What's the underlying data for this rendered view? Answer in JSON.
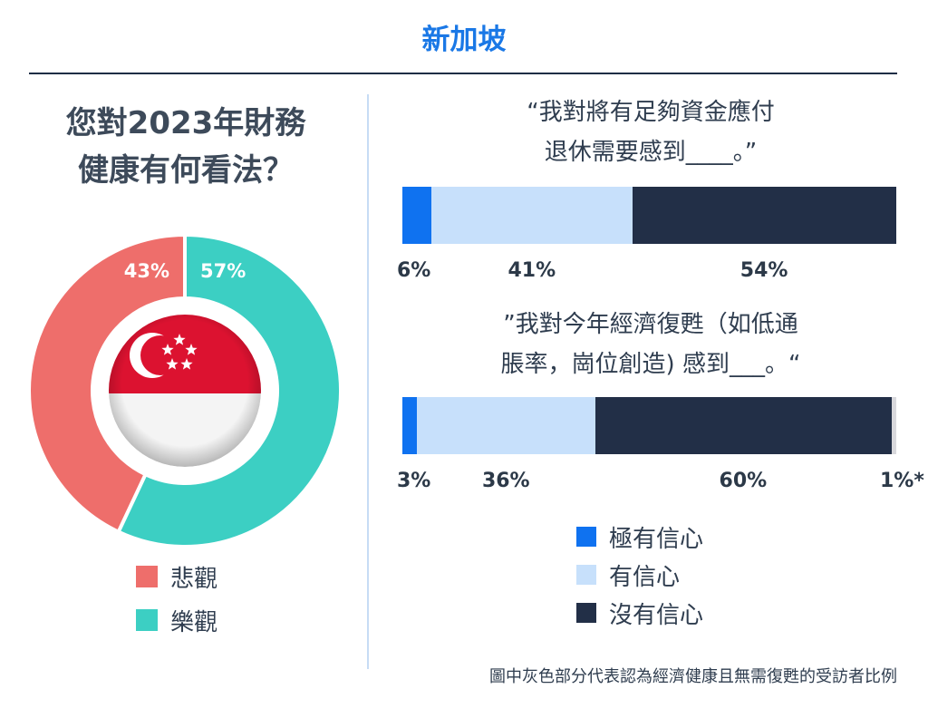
{
  "header": {
    "title": "新加坡"
  },
  "left_panel": {
    "question_line1": "您對2023年財務",
    "question_line2": "健康有何看法？"
  },
  "colors": {
    "pessimistic": "#ee6e6b",
    "optimistic": "#3ccfc3",
    "very_confident": "#0f72f0",
    "confident": "#c7e0fb",
    "not_confident": "#222f47",
    "healthy_grey": "#d8d8dc",
    "flag_red": "#dc1230",
    "flag_white": "#f4f4f4"
  },
  "flag_icon": "singapore-flag-icon",
  "right_panel": {
    "statement1_line1": "“我對將有足夠資金應付",
    "statement1_line2": "退休需要感到____。”",
    "statement2_line1": "”我對今年經濟復甦（如低通",
    "statement2_line2": "脹率，崗位創造) 感到___。“",
    "footnote": "圖中灰色部分代表認為經濟健康且無需復甦的受訪者比例"
  },
  "chart_data": [
    {
      "type": "pie",
      "title": "您對2023年財務健康有何看法？",
      "slices": [
        {
          "label": "悲觀",
          "value": 43,
          "value_label": "43%"
        },
        {
          "label": "樂觀",
          "value": 57,
          "value_label": "57%"
        }
      ],
      "legend": [
        "悲觀",
        "樂觀"
      ],
      "legend_placement": "bottom"
    },
    {
      "type": "bar",
      "orientation": "horizontal-stacked",
      "title": "“我對將有足夠資金應付退休需要感到____。”",
      "series": [
        {
          "name": "極有信心",
          "values": [
            6
          ],
          "value_label": "6%"
        },
        {
          "name": "有信心",
          "values": [
            41
          ],
          "value_label": "41%"
        },
        {
          "name": "沒有信心",
          "values": [
            54
          ],
          "value_label": "54%"
        }
      ]
    },
    {
      "type": "bar",
      "orientation": "horizontal-stacked",
      "title": "”我對今年經濟復甦（如低通脹率，崗位創造) 感到___。“",
      "series": [
        {
          "name": "極有信心",
          "values": [
            3
          ],
          "value_label": "3%"
        },
        {
          "name": "有信心",
          "values": [
            36
          ],
          "value_label": "36%"
        },
        {
          "name": "沒有信心",
          "values": [
            60
          ],
          "value_label": "60%"
        },
        {
          "values": [
            1
          ],
          "value_label": "1%*"
        }
      ]
    }
  ],
  "right_legend": [
    "極有信心",
    "有信心",
    "沒有信心"
  ]
}
